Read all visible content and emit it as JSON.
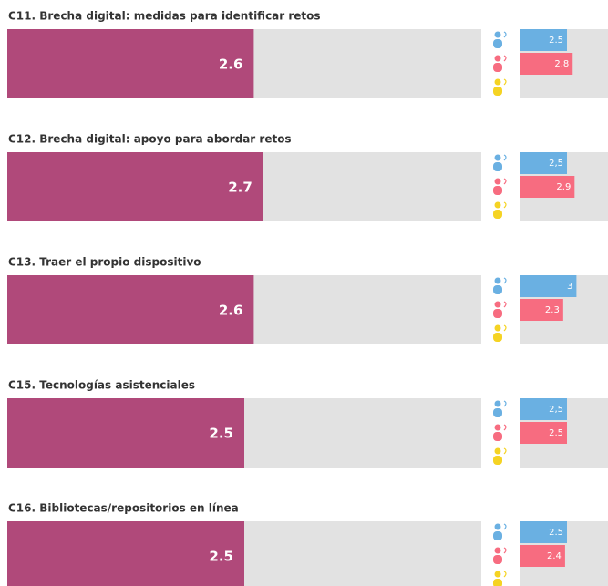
{
  "chart_data": [
    {
      "type": "bar",
      "title": "C11. Brecha digital: medidas para identificar retos",
      "value": 2.6,
      "color": "#b0497a",
      "xlim": [
        0,
        5
      ],
      "groups": {
        "values": [
          2.5,
          2.8,
          null
        ],
        "value_labels": [
          "2.5",
          "2.8",
          null
        ],
        "colors": [
          "#6ab0e2",
          "#f76c80",
          "#f5d323"
        ]
      }
    },
    {
      "type": "bar",
      "title": "C12. Brecha digital: apoyo para abordar retos",
      "value": 2.7,
      "color": "#b0497a",
      "xlim": [
        0,
        5
      ],
      "groups": {
        "values": [
          2.5,
          2.9,
          null
        ],
        "value_labels": [
          "2,5",
          "2.9",
          null
        ],
        "colors": [
          "#6ab0e2",
          "#f76c80",
          "#f5d323"
        ]
      }
    },
    {
      "type": "bar",
      "title": "C13. Traer el propio dispositivo",
      "value": 2.6,
      "color": "#b0497a",
      "xlim": [
        0,
        5
      ],
      "groups": {
        "values": [
          3,
          2.3,
          null
        ],
        "value_labels": [
          "3",
          "2.3",
          null
        ],
        "colors": [
          "#6ab0e2",
          "#f76c80",
          "#f5d323"
        ]
      }
    },
    {
      "type": "bar",
      "title": "C15. Tecnologías asistenciales",
      "value": 2.5,
      "color": "#b0497a",
      "xlim": [
        0,
        5
      ],
      "groups": {
        "values": [
          2.5,
          2.5,
          null
        ],
        "value_labels": [
          "2,5",
          "2.5",
          null
        ],
        "colors": [
          "#6ab0e2",
          "#f76c80",
          "#f5d323"
        ]
      }
    },
    {
      "type": "bar",
      "title": "C16. Bibliotecas/repositorios en línea",
      "value": 2.5,
      "color": "#b0497a",
      "xlim": [
        0,
        5
      ],
      "groups": {
        "values": [
          2.5,
          2.4,
          null
        ],
        "value_labels": [
          "2.5",
          "2.4",
          null
        ],
        "colors": [
          "#6ab0e2",
          "#f76c80",
          "#f5d323"
        ]
      }
    }
  ]
}
